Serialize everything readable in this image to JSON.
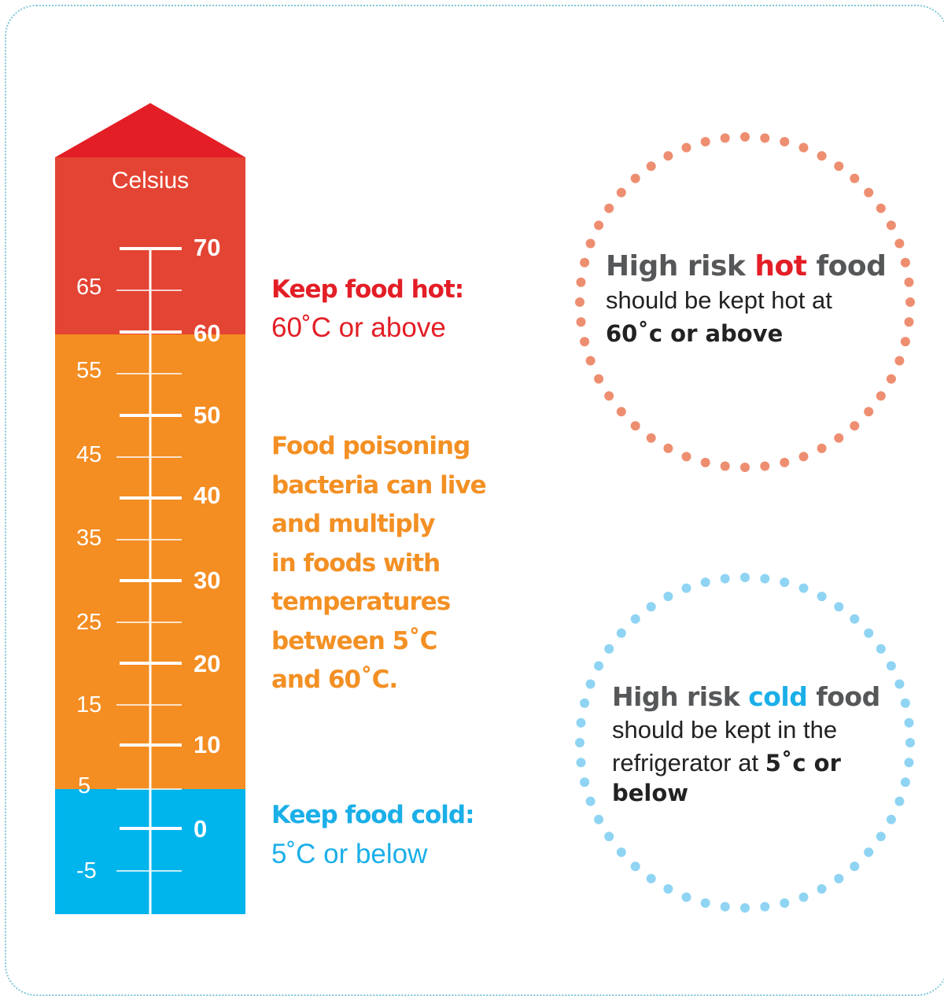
{
  "thermometer": {
    "unit_label": "Celsius",
    "left_scale": [
      "65",
      "55",
      "45",
      "35",
      "25",
      "15",
      "5",
      "-5"
    ],
    "right_scale": [
      "70",
      "60",
      "50",
      "40",
      "30",
      "20",
      "10",
      "0"
    ],
    "colors": {
      "hot": "#e44433",
      "arrow": "#e31e26",
      "danger": "#f48d22",
      "cold": "#00b4ec"
    }
  },
  "zones": {
    "hot": {
      "heading": "Keep food hot:",
      "detail": "60˚C or above",
      "color": "#e31e26"
    },
    "danger": {
      "lines": [
        "Food poisoning",
        "bacteria can live",
        "and multiply",
        "in foods with",
        "temperatures",
        "between 5˚C",
        "and 60˚C."
      ],
      "color": "#f39024"
    },
    "cold": {
      "heading": "Keep food cold:",
      "detail": "5˚C or below",
      "color": "#1bafe8"
    }
  },
  "hot_circle": {
    "title_pre": "High risk ",
    "title_accent": "hot",
    "title_post": " food",
    "body": "should be kept hot at",
    "emphasis": "60˚c or above",
    "dot_color": "#ee8e71"
  },
  "cold_circle": {
    "title_pre": "High risk ",
    "title_accent": "cold",
    "title_post": " food",
    "body_line1": "should be kept in the",
    "body_line2": "refrigerator at ",
    "emphasis_a": "5˚c or",
    "emphasis_b": "below",
    "dot_color": "#8fd4f3"
  }
}
